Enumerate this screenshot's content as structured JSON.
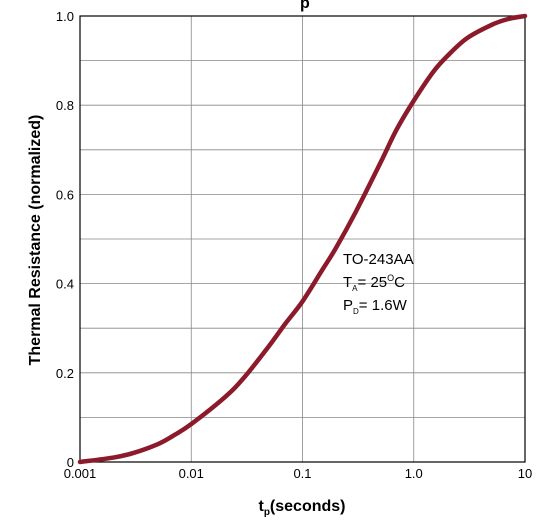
{
  "chart_data": {
    "type": "line",
    "title": "",
    "title_partial": "p",
    "xlabel_main": "t",
    "xlabel_sub": "p",
    "xlabel_rest": "(seconds)",
    "ylabel": "Thermal Resistance (normalized)",
    "x_scale": "log",
    "xlim": [
      0.001,
      10
    ],
    "ylim": [
      0,
      1.0
    ],
    "grid": true,
    "x_ticks": [
      0.001,
      0.01,
      0.1,
      1.0,
      10
    ],
    "x_tick_labels": [
      "0.001",
      "0.01",
      "0.1",
      "1.0",
      "10"
    ],
    "y_ticks": [
      0,
      0.2,
      0.4,
      0.6,
      0.8,
      1.0
    ],
    "y_tick_labels": [
      "0",
      "0.2",
      "0.4",
      "0.6",
      "0.8",
      "1.0"
    ],
    "series": [
      {
        "color": "#8b1a2b",
        "x": [
          0.001,
          0.002,
          0.003,
          0.005,
          0.007,
          0.01,
          0.02,
          0.03,
          0.05,
          0.07,
          0.1,
          0.15,
          0.2,
          0.3,
          0.5,
          0.7,
          1.0,
          1.5,
          2,
          3,
          5,
          7,
          10
        ],
        "y": [
          0.0,
          0.01,
          0.02,
          0.04,
          0.06,
          0.085,
          0.145,
          0.19,
          0.26,
          0.31,
          0.36,
          0.43,
          0.48,
          0.56,
          0.67,
          0.745,
          0.81,
          0.875,
          0.91,
          0.95,
          0.98,
          0.993,
          1.0
        ]
      }
    ],
    "annotation": {
      "line1": "TO-243AA",
      "line2_main": "T",
      "line2_sub": "A",
      "line2_rest": "= 25",
      "line2_sup": "O",
      "line2_end": "C",
      "line3_main": "P",
      "line3_sub": "D",
      "line3_rest": "= 1.6W"
    }
  }
}
